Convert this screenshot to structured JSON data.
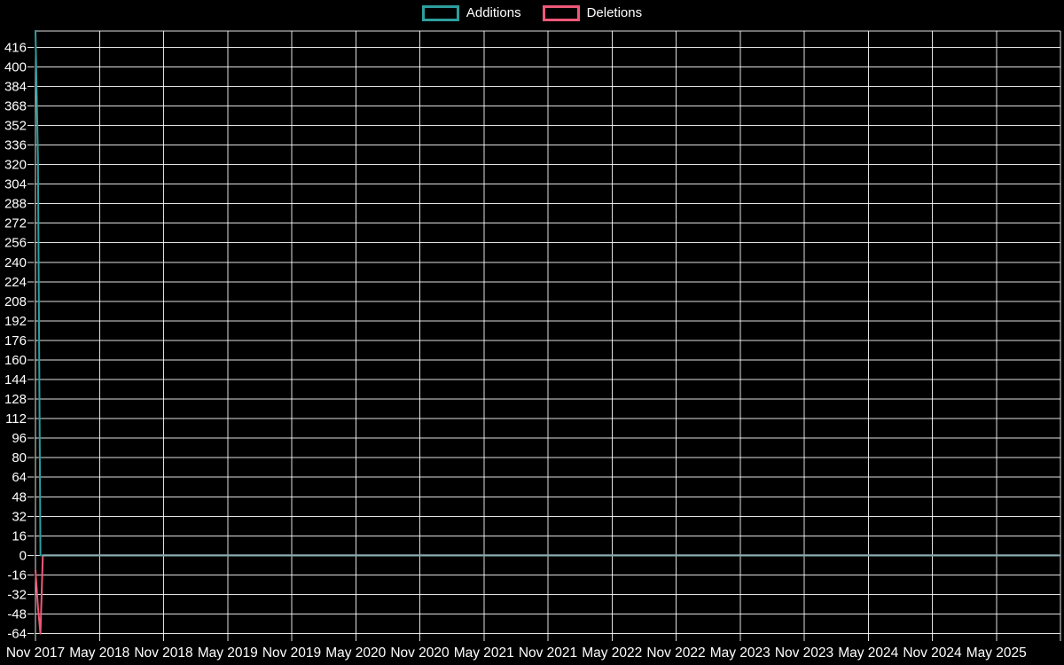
{
  "app": {
    "background_color": "#000000",
    "text_color": "#ffffff",
    "grid_color": "#ffffff"
  },
  "legend": {
    "items": [
      {
        "label": "Additions",
        "color": "#2e9e9e"
      },
      {
        "label": "Deletions",
        "color": "#ee5877"
      }
    ]
  },
  "chart_data": {
    "type": "line",
    "title": "",
    "legend_position": "top-center",
    "grid": true,
    "x_axis": {
      "tick_labels": [
        "Nov 2017",
        "May 2018",
        "Nov 2018",
        "May 2019",
        "Nov 2019",
        "May 2020",
        "Nov 2020",
        "May 2021",
        "Nov 2021",
        "May 2022",
        "Nov 2022",
        "May 2023",
        "Nov 2023",
        "May 2024",
        "Nov 2024",
        "May 2025"
      ],
      "weeks_per_tick": 26,
      "total_weeks": 416
    },
    "y_axis": {
      "ticks": [
        416,
        400,
        384,
        368,
        352,
        336,
        320,
        304,
        288,
        272,
        256,
        240,
        224,
        208,
        192,
        176,
        160,
        144,
        128,
        112,
        96,
        80,
        64,
        48,
        32,
        16,
        0,
        -16,
        -32,
        -48,
        -64
      ],
      "step": 16,
      "ylim": [
        -70,
        430
      ]
    },
    "series": [
      {
        "name": "Additions",
        "color": "#2e9e9e",
        "points": [
          [
            0,
            430
          ],
          [
            1,
            326
          ],
          [
            2,
            0
          ],
          [
            415,
            0
          ]
        ]
      },
      {
        "name": "Deletions",
        "color": "#ee5877",
        "points": [
          [
            0,
            -12
          ],
          [
            1,
            -42
          ],
          [
            2,
            -64
          ],
          [
            3,
            0
          ],
          [
            415,
            0
          ]
        ]
      }
    ],
    "zero_line_blend_color": "#8badaf"
  }
}
